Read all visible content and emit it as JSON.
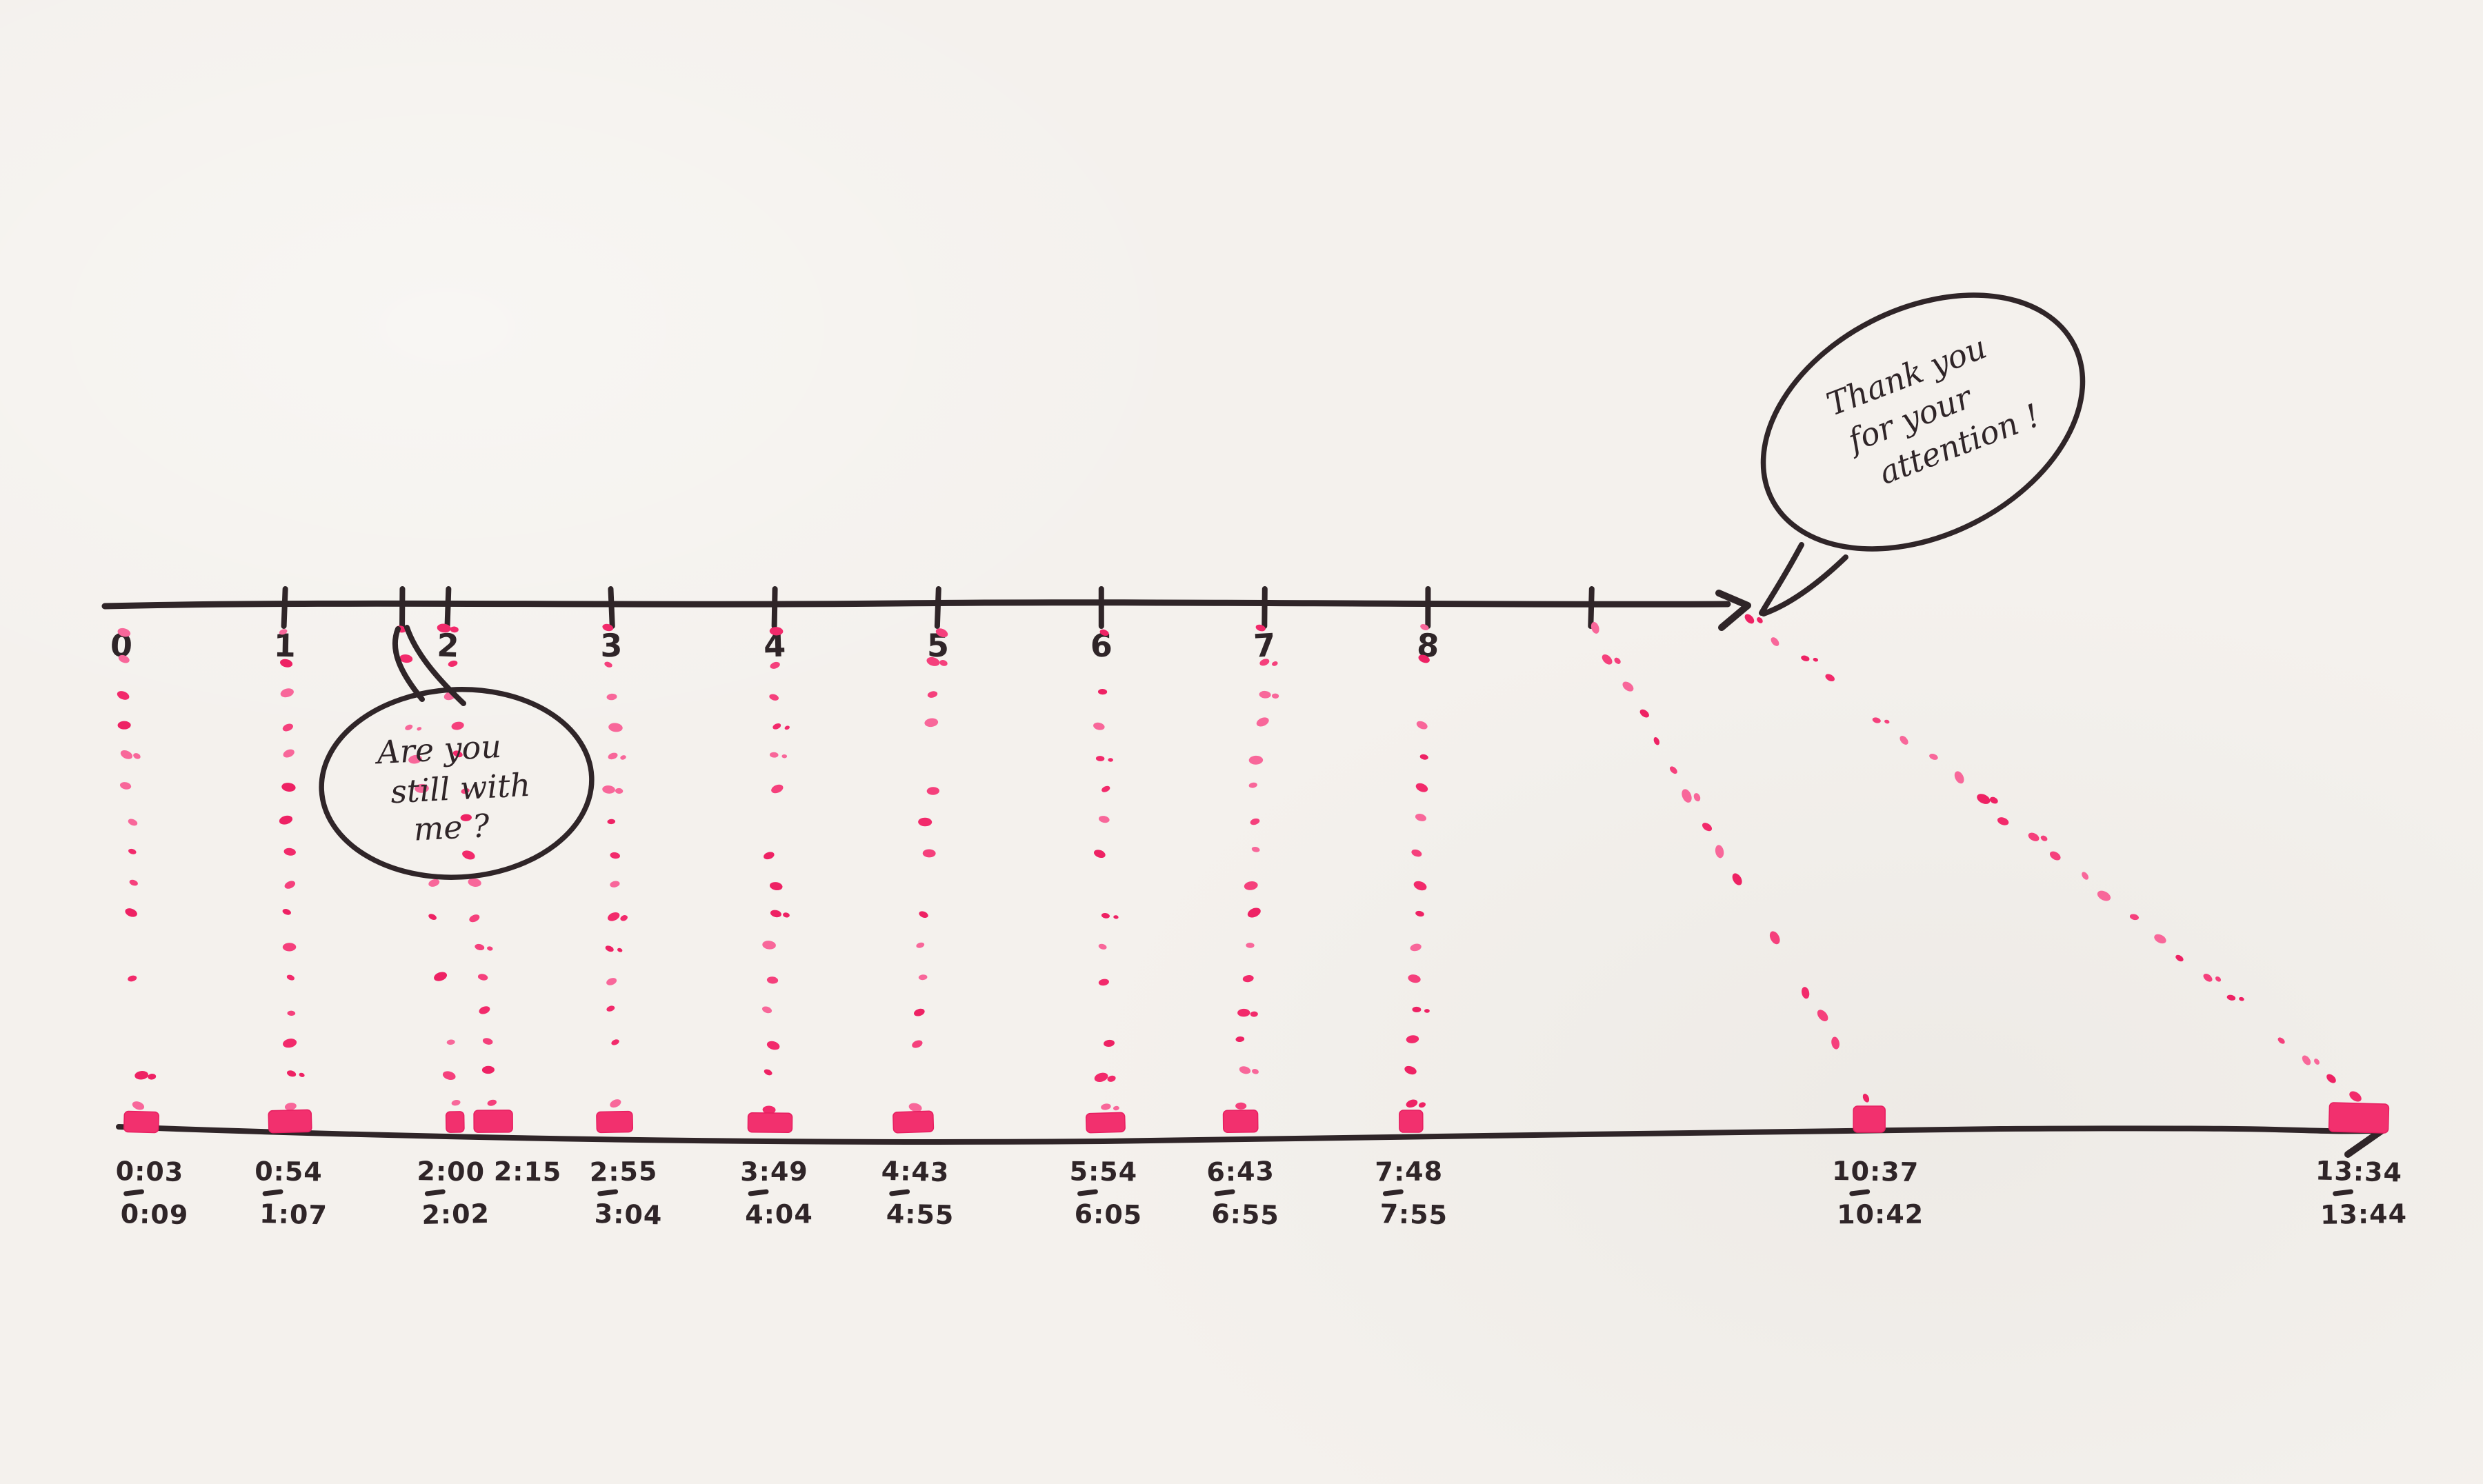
{
  "page": {
    "paper_color": "#f4f1ed",
    "ink_color": "#2f2528",
    "highlighter_color": "#f2306e"
  },
  "chart_data": {
    "type": "scatter",
    "title": "",
    "description_of_axes": {
      "top_axis": "slide numbers with arrow at end",
      "bottom_axis": "elapsed time marks with arrow at end"
    },
    "top_axis_tick_labels": [
      "0",
      "1",
      "2",
      "3",
      "4",
      "5",
      "6",
      "7",
      "8"
    ],
    "grid": false,
    "legend_position": "none",
    "events": [
      {
        "top_unit": 0,
        "top_label": "0",
        "start": "0:03",
        "end": "0:09"
      },
      {
        "top_unit": 1,
        "top_label": "1",
        "start": "0:54",
        "end": "1:07"
      },
      {
        "top_unit": 1.72,
        "top_label": null,
        "start": "2:00",
        "end": "2:02"
      },
      {
        "top_unit": 2,
        "top_label": "2",
        "start": "2:15",
        "end": null
      },
      {
        "top_unit": 3,
        "top_label": "3",
        "start": "2:55",
        "end": "3:04"
      },
      {
        "top_unit": 4,
        "top_label": "4",
        "start": "3:49",
        "end": "4:04"
      },
      {
        "top_unit": 5,
        "top_label": "5",
        "start": "4:43",
        "end": "4:55"
      },
      {
        "top_unit": 6,
        "top_label": "6",
        "start": "5:54",
        "end": "6:05"
      },
      {
        "top_unit": 7,
        "top_label": "7",
        "start": "6:43",
        "end": "6:55"
      },
      {
        "top_unit": 8,
        "top_label": "8",
        "start": "7:48",
        "end": "7:55"
      },
      {
        "top_unit": 9,
        "top_label": null,
        "start": "10:37",
        "end": "10:42"
      },
      {
        "top_unit": 9.95,
        "top_label": null,
        "start": "13:34",
        "end": "13:44",
        "from_arrow": true
      }
    ]
  },
  "bubbles": [
    {
      "lines": [
        "Are you",
        "still with",
        "me ?"
      ]
    },
    {
      "lines": [
        "Thank you",
        "for your",
        "attention !"
      ]
    }
  ]
}
